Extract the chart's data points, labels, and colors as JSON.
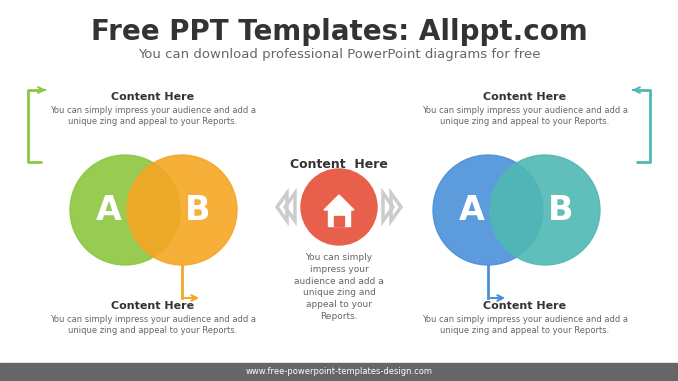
{
  "title": "Free PPT Templates: Allppt.com",
  "subtitle": "You can download professional PowerPoint diagrams for free",
  "title_color": "#333333",
  "subtitle_color": "#666666",
  "bg_color": "#ffffff",
  "footer_bg": "#666666",
  "footer_text": "www.free-powerpoint-templates-design.com",
  "left_circle_A_color": "#8dc63f",
  "left_circle_B_color": "#f5a623",
  "right_circle_A_color": "#4a90d9",
  "right_circle_B_color": "#50b8b4",
  "center_circle_color": "#e8604c",
  "label_A": "A",
  "label_B": "B",
  "content_label": "Content  Here",
  "content_body": "You can simply\nimpress your\naudience and add a\nunique zing and\nappeal to your\nReports.",
  "top_left_label": "Content Here",
  "top_left_body": "You can simply impress your audience and add a\nunique zing and appeal to your Reports.",
  "top_right_label": "Content Here",
  "top_right_body": "You can simply impress your audience and add a\nunique zing and appeal to your Reports.",
  "bottom_left_label": "Content Here",
  "bottom_left_body": "You can simply impress your audience and add a\nunique zing and appeal to your Reports.",
  "bottom_right_label": "Content Here",
  "bottom_right_body": "You can simply impress your audience and add a\nunique zing and appeal to your Reports.",
  "bracket_left_color": "#8dc63f",
  "bracket_right_color": "#50b8b4",
  "arrow_bottom_left_color": "#f5a623",
  "arrow_bottom_right_color": "#4a90d9",
  "chevron_color": "#cccccc"
}
